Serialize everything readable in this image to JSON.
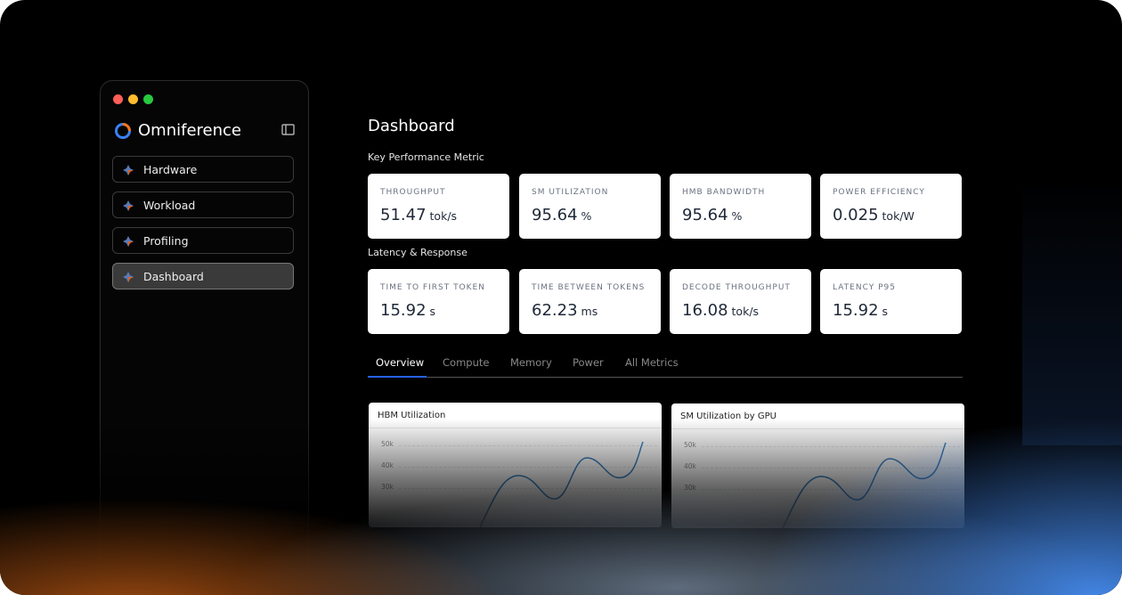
{
  "window": {
    "brand": "Omniference",
    "nav": [
      "Hardware",
      "Workload",
      "Profiling",
      "Dashboard"
    ],
    "active_nav": 3
  },
  "main": {
    "title": "Dashboard",
    "sections": [
      {
        "heading": "Key Performance Metric",
        "cards": [
          {
            "label": "THROUGHPUT",
            "value": "51.47",
            "unit": "tok/s"
          },
          {
            "label": "SM UTILIZATION",
            "value": "95.64",
            "unit": "%"
          },
          {
            "label": "HMB BANDWIDTH",
            "value": "95.64",
            "unit": "%"
          },
          {
            "label": "POWER EFFICIENCY",
            "value": "0.025",
            "unit": "tok/W"
          }
        ]
      },
      {
        "heading": "Latency & Response",
        "cards": [
          {
            "label": "TIME TO FIRST TOKEN",
            "value": "15.92",
            "unit": "s"
          },
          {
            "label": "TIME BETWEEN TOKENS",
            "value": "62.23",
            "unit": "ms"
          },
          {
            "label": "DECODE THROUGHPUT",
            "value": "16.08",
            "unit": "tok/s"
          },
          {
            "label": "LATENCY P95",
            "value": "15.92",
            "unit": "s"
          }
        ]
      }
    ],
    "tabs": [
      "Overview",
      "Compute",
      "Memory",
      "Power",
      "All Metrics"
    ],
    "active_tab": 0,
    "charts": [
      {
        "title": "HBM Utilization",
        "yticks": [
          "50k",
          "40k",
          "30k"
        ]
      },
      {
        "title": "SM Utilization by GPU",
        "yticks": [
          "50k",
          "40k",
          "30k"
        ]
      }
    ]
  }
}
